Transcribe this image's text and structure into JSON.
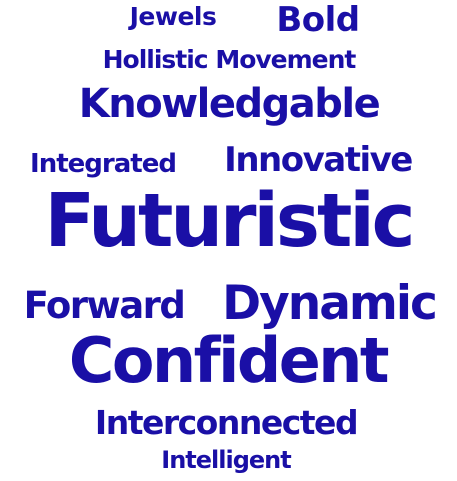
{
  "style": {
    "word_color": "#1a0fa6",
    "background": "#ffffff"
  },
  "words": [
    "Jewels",
    "Bold",
    "Hollistic Movement",
    "Knowledgable",
    "Integrated",
    "Innovative",
    "Futuristic",
    "Forward",
    "Dynamic",
    "Confident",
    "Interconnected",
    "Intelligent"
  ]
}
